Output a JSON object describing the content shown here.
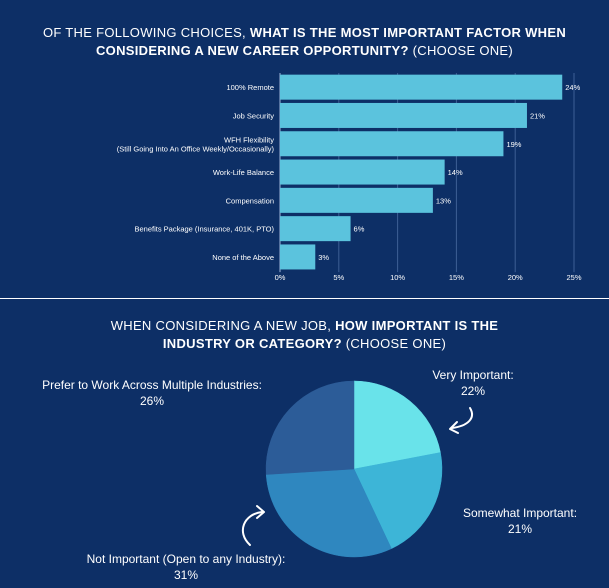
{
  "question1": {
    "title_part1": "OF THE FOLLOWING CHOICES, ",
    "title_part2": "WHAT IS THE MOST IMPORTANT FACTOR WHEN",
    "title_part3": "CONSIDERING A NEW CAREER OPPORTUNITY?",
    "title_part4": " (CHOOSE ONE)"
  },
  "question2": {
    "title_part1": "WHEN CONSIDERING A NEW JOB, ",
    "title_part2": "HOW IMPORTANT IS THE",
    "title_part3": "INDUSTRY OR CATEGORY?",
    "title_part4": " (CHOOSE ONE)"
  },
  "colors": {
    "background": "#0d2f66",
    "bar": "#5bc3dd",
    "grid": "#3d5f95"
  },
  "chart_data": [
    {
      "type": "bar",
      "orientation": "horizontal",
      "categories": [
        [
          "100% Remote"
        ],
        [
          "Job Security"
        ],
        [
          "WFH Flexibility",
          "(Still Going Into An Office Weekly/Occasionally)"
        ],
        [
          "Work-Life Balance"
        ],
        [
          "Compensation"
        ],
        [
          "Benefits Package (Insurance, 401K, PTO)"
        ],
        [
          "None of the Above"
        ]
      ],
      "values": [
        24,
        21,
        19,
        14,
        13,
        6,
        3
      ],
      "value_labels": [
        "24%",
        "21%",
        "19%",
        "14%",
        "13%",
        "6%",
        "3%"
      ],
      "xlim": [
        0,
        25
      ],
      "ticks": [
        0,
        5,
        10,
        15,
        20,
        25
      ],
      "tick_labels": [
        "0%",
        "5%",
        "10%",
        "15%",
        "20%",
        "25%"
      ],
      "grid": true
    },
    {
      "type": "pie",
      "slices": [
        {
          "label": "Very Important:",
          "value": 22,
          "value_label": "22%",
          "color": "#69e3ea"
        },
        {
          "label": "Somewhat Important:",
          "value": 21,
          "value_label": "21%",
          "color": "#3db5d7"
        },
        {
          "label": "Not Important (Open to any Industry):",
          "value": 31,
          "value_label": "31%",
          "color": "#2f87bf"
        },
        {
          "label": "Prefer to Work Across Multiple Industries:",
          "value": 26,
          "value_label": "26%",
          "color": "#2c5c98"
        }
      ]
    }
  ]
}
